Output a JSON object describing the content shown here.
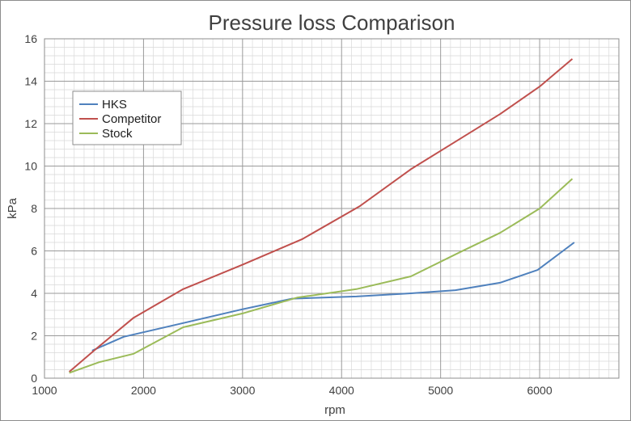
{
  "chart_data": {
    "type": "line",
    "title": "Pressure loss Comparison",
    "xlabel": "rpm",
    "ylabel": "kPa",
    "xlim": [
      1000,
      6800
    ],
    "ylim": [
      0,
      16
    ],
    "xticks": [
      1000,
      2000,
      3000,
      4000,
      5000,
      6000
    ],
    "xtick_labels": [
      "1000",
      "2000",
      "3000",
      "4000",
      "5000",
      "6000"
    ],
    "yticks": [
      0,
      2,
      4,
      6,
      8,
      10,
      12,
      14,
      16
    ],
    "ytick_labels": [
      "0",
      "2",
      "4",
      "6",
      "8",
      "10",
      "12",
      "14",
      "16"
    ],
    "grid": "major and minor",
    "legend_position": "upper-left",
    "series": [
      {
        "name": "HKS",
        "color": "#4f81bd",
        "x": [
          1480,
          1800,
          2400,
          3000,
          3500,
          4150,
          4700,
          5150,
          5600,
          5980,
          6350
        ],
        "y": [
          1.3,
          1.95,
          2.6,
          3.25,
          3.75,
          3.85,
          4.0,
          4.15,
          4.5,
          5.1,
          6.4
        ]
      },
      {
        "name": "Competitor",
        "color": "#c0504d",
        "x": [
          1250,
          1500,
          1900,
          2400,
          3000,
          3600,
          4180,
          4700,
          5150,
          5600,
          6000,
          6330
        ],
        "y": [
          0.3,
          1.3,
          2.85,
          4.2,
          5.35,
          6.55,
          8.1,
          9.85,
          11.15,
          12.45,
          13.75,
          15.05
        ]
      },
      {
        "name": "Stock",
        "color": "#9bbb59",
        "x": [
          1250,
          1550,
          1900,
          2400,
          3000,
          3550,
          4150,
          4700,
          5200,
          5600,
          6000,
          6330
        ],
        "y": [
          0.25,
          0.75,
          1.15,
          2.4,
          3.05,
          3.8,
          4.2,
          4.8,
          5.95,
          6.85,
          8.0,
          9.4
        ]
      }
    ]
  }
}
